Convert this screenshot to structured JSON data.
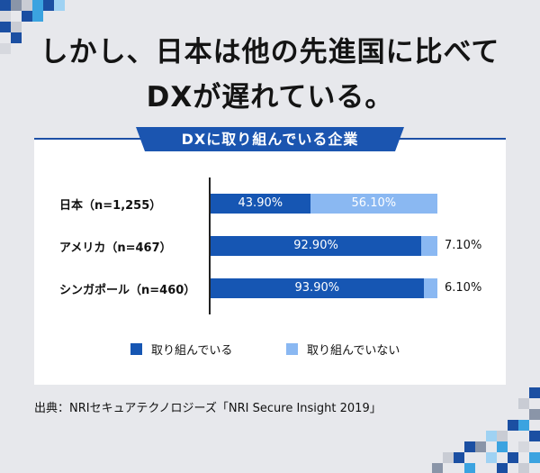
{
  "headline": {
    "line1": "しかし、日本は他の先進国に比べて",
    "line2": "DXが遅れている。"
  },
  "colors": {
    "series_engaged": "#1656b3",
    "series_not_engaged": "#8ab8f2",
    "accent": "#1b55b0",
    "background": "#e7e8ec"
  },
  "chart_data": {
    "type": "bar",
    "orientation": "horizontal",
    "stacked": true,
    "title": "DXに取り組んでいる企業",
    "categories": [
      "日本（n=1,255）",
      "アメリカ（n=467）",
      "シンガポール（n=460）"
    ],
    "series": [
      {
        "name": "取り組んでいる",
        "values": [
          43.9,
          92.9,
          93.9
        ],
        "labels": [
          "43.90%",
          "92.90%",
          "93.90%"
        ]
      },
      {
        "name": "取り組んでいない",
        "values": [
          56.1,
          7.1,
          6.1
        ],
        "labels": [
          "56.10%",
          "7.10%",
          "6.10%"
        ]
      }
    ],
    "xlim": [
      0,
      100
    ],
    "legend_position": "bottom",
    "grid": false
  },
  "source": "出典：NRIセキュアテクノロジーズ「NRI Secure Insight 2019」"
}
